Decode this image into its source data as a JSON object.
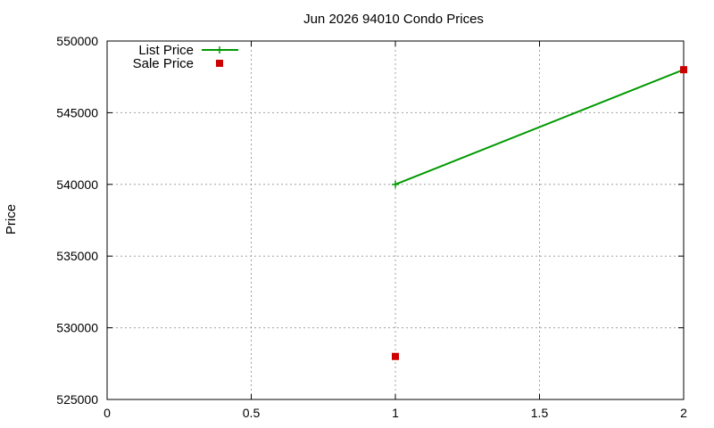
{
  "chart_data": {
    "type": "line",
    "title": "Jun 2026 94010 Condo Prices",
    "xlabel": "",
    "ylabel": "Price",
    "xlim": [
      0,
      2
    ],
    "ylim": [
      525000,
      550000
    ],
    "x_ticks": [
      {
        "value": 0,
        "label": "0"
      },
      {
        "value": 0.5,
        "label": "0.5"
      },
      {
        "value": 1,
        "label": "1"
      },
      {
        "value": 1.5,
        "label": "1.5"
      },
      {
        "value": 2,
        "label": "2"
      }
    ],
    "y_ticks": [
      {
        "value": 525000,
        "label": "525000"
      },
      {
        "value": 530000,
        "label": "530000"
      },
      {
        "value": 535000,
        "label": "535000"
      },
      {
        "value": 540000,
        "label": "540000"
      },
      {
        "value": 545000,
        "label": "545000"
      },
      {
        "value": 550000,
        "label": "550000"
      }
    ],
    "grid": true,
    "legend_position": "top-left",
    "series": [
      {
        "name": "List Price",
        "style": "line-with-plus-markers",
        "color": "#009900",
        "points": [
          {
            "x": 1,
            "y": 540000
          },
          {
            "x": 2,
            "y": 548000
          }
        ]
      },
      {
        "name": "Sale Price",
        "style": "square-markers",
        "color": "#cc0000",
        "points": [
          {
            "x": 1,
            "y": 528000
          },
          {
            "x": 2,
            "y": 548000
          }
        ]
      }
    ]
  }
}
